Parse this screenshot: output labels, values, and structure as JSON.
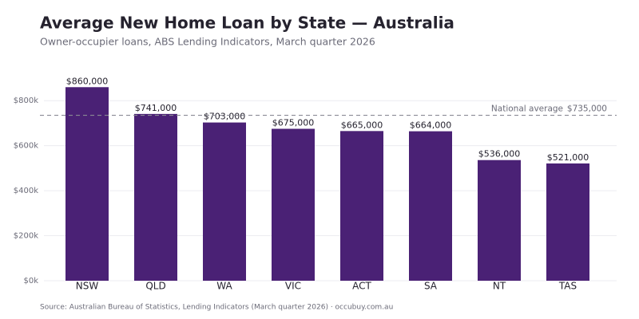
{
  "chart_data": {
    "type": "bar",
    "title": "Average New Home Loan by State — Australia",
    "subtitle": "Owner-occupier loans, ABS Lending Indicators, March quarter 2026",
    "source": "Source: Australian Bureau of Statistics, Lending Indicators (March quarter 2026)  ·  occubuy.com.au",
    "categories": [
      "NSW",
      "QLD",
      "WA",
      "VIC",
      "ACT",
      "SA",
      "NT",
      "TAS"
    ],
    "values": [
      860000,
      741000,
      703000,
      675000,
      665000,
      664000,
      536000,
      521000
    ],
    "value_labels": [
      "$860,000",
      "$741,000",
      "$703,000",
      "$675,000",
      "$665,000",
      "$664,000",
      "$536,000",
      "$521,000"
    ],
    "color": "#4a2175",
    "ylim": [
      0,
      900000
    ],
    "yticks": [
      {
        "value": 0,
        "label": "$0k"
      },
      {
        "value": 200000,
        "label": "$200k"
      },
      {
        "value": 400000,
        "label": "$400k"
      },
      {
        "value": 600000,
        "label": "$600k"
      },
      {
        "value": 800000,
        "label": "$800k"
      }
    ],
    "grid": true,
    "reference_line": {
      "value": 735000,
      "label": "National average",
      "value_label": "$735,000"
    }
  }
}
